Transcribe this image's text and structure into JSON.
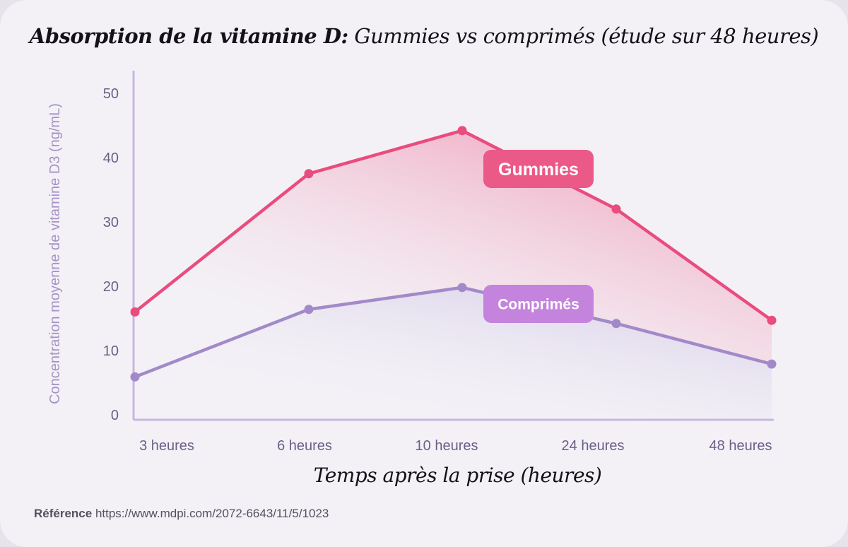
{
  "chart_data": {
    "type": "line",
    "title_bold": "Absorption de la vitamine D:",
    "title_rest": "Gummies vs comprimés (étude sur 48 heures)",
    "xlabel": "Temps après la prise (heures)",
    "ylabel": "Concentration moyenne de vitamine D3 (ng/mL)",
    "categories": [
      "3 heures",
      "6 heures",
      "10 heures",
      "24 heures",
      "48 heures"
    ],
    "x_positions": [
      3,
      6,
      10,
      24,
      48
    ],
    "y_ticks": [
      0,
      10,
      20,
      30,
      40,
      50
    ],
    "ylim": [
      0,
      50
    ],
    "grid": false,
    "series": [
      {
        "name": "Gummies",
        "color": "#e94c7d",
        "badge_color": "#ea5987",
        "values": [
          16,
          37.5,
          44.2,
          32,
          14.7
        ]
      },
      {
        "name": "Comprimés",
        "color": "#a28ac9",
        "badge_color": "#c483dc",
        "values": [
          5.9,
          16.4,
          19.8,
          14.2,
          7.9
        ]
      }
    ]
  },
  "reference": {
    "label": "Référence",
    "url": "https://www.mdpi.com/2072-6643/11/5/1023"
  }
}
